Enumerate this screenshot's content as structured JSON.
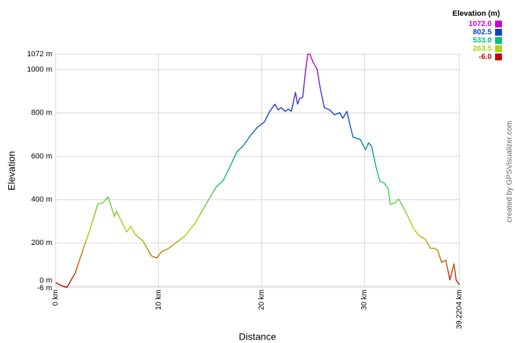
{
  "chart_data": {
    "type": "line",
    "y_label": "Elevation",
    "x_label": "Distance",
    "credit": "created by GPSVisualizer.com",
    "xlim": [
      0,
      39.2204
    ],
    "ylim": [
      -6,
      1072
    ],
    "xticks": [
      {
        "value": 0,
        "label": "0 km"
      },
      {
        "value": 10,
        "label": "10 km"
      },
      {
        "value": 20,
        "label": "20 km"
      },
      {
        "value": 30,
        "label": "30 km"
      },
      {
        "value": 39.2204,
        "label": "39.2204 km"
      }
    ],
    "yticks": [
      {
        "value": -6,
        "label": "-6 m"
      },
      {
        "value": 0,
        "label": "0 m"
      },
      {
        "value": 200,
        "label": "200 m"
      },
      {
        "value": 400,
        "label": "400 m"
      },
      {
        "value": 600,
        "label": "600 m"
      },
      {
        "value": 800,
        "label": "800 m"
      },
      {
        "value": 1000,
        "label": "1000 m"
      },
      {
        "value": 1072,
        "label": "1072 m"
      }
    ],
    "grid": true,
    "legend": {
      "title": "Elevation (m)",
      "entries": [
        {
          "value": 1072,
          "label": "1072.0",
          "color": "#cc00cc"
        },
        {
          "value": 802.5,
          "label": "802.5",
          "color": "#1040cc"
        },
        {
          "value": 533,
          "label": "533.0",
          "color": "#00c080"
        },
        {
          "value": 263.5,
          "label": "263.5",
          "color": "#a8d800"
        },
        {
          "value": -6,
          "label": "-6.0",
          "color": "#cc0000"
        }
      ]
    },
    "x": [
      0,
      0.6,
      1.1,
      1.9,
      2.6,
      3.3,
      4.1,
      4.6,
      4.9,
      5.1,
      5.5,
      5.7,
      5.9,
      6.5,
      6.9,
      7.3,
      7.7,
      8.5,
      9.3,
      9.8,
      10.3,
      10.9,
      11.9,
      12.6,
      13.6,
      14.3,
      14.9,
      15.6,
      16.3,
      16.9,
      17.6,
      18.3,
      18.9,
      19.6,
      20.3,
      20.8,
      21.3,
      21.6,
      21.9,
      22.3,
      22.6,
      22.9,
      23.3,
      23.5,
      23.7,
      24.0,
      24.3,
      24.5,
      24.7,
      25.0,
      25.4,
      25.7,
      26.1,
      26.6,
      27.1,
      27.6,
      27.9,
      28.3,
      28.6,
      28.9,
      29.6,
      30.1,
      30.4,
      30.7,
      31.1,
      31.5,
      31.9,
      32.3,
      32.5,
      33.0,
      33.3,
      33.6,
      34.3,
      34.8,
      35.4,
      35.9,
      36.4,
      36.8,
      37.1,
      37.5,
      37.9,
      38.3,
      38.7,
      38.9,
      39.2204
    ],
    "values": [
      16,
      2,
      -6,
      60,
      160,
      256,
      380,
      385,
      402,
      412,
      354,
      321,
      347,
      289,
      250,
      276,
      240,
      208,
      140,
      130,
      159,
      172,
      208,
      234,
      295,
      354,
      403,
      458,
      490,
      549,
      620,
      653,
      695,
      734,
      760,
      808,
      841,
      815,
      825,
      808,
      818,
      808,
      896,
      841,
      867,
      873,
      1003,
      1072,
      1072,
      1036,
      1003,
      916,
      825,
      815,
      792,
      802,
      776,
      808,
      743,
      688,
      678,
      630,
      662,
      646,
      555,
      484,
      477,
      451,
      377,
      386,
      403,
      380,
      315,
      263,
      230,
      218,
      175,
      175,
      166,
      110,
      120,
      29,
      104,
      29,
      6
    ]
  }
}
